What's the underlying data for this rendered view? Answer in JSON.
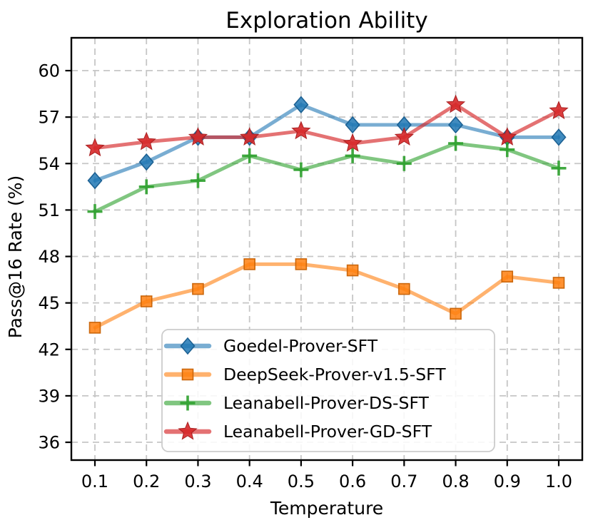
{
  "chart_data": {
    "type": "line",
    "title": "Exploration Ability",
    "xlabel": "Temperature",
    "ylabel": "Pass@16 Rate (%)",
    "x": [
      0.1,
      0.2,
      0.3,
      0.4,
      0.5,
      0.6,
      0.7,
      0.8,
      0.9,
      1.0
    ],
    "xtick_labels": [
      "0.1",
      "0.2",
      "0.3",
      "0.4",
      "0.5",
      "0.6",
      "0.7",
      "0.8",
      "0.9",
      "1.0"
    ],
    "yticks": [
      36,
      39,
      42,
      45,
      48,
      51,
      54,
      57,
      60
    ],
    "ytick_labels": [
      "36",
      "39",
      "42",
      "45",
      "48",
      "51",
      "54",
      "57",
      "60"
    ],
    "xlim": [
      0.0543,
      1.0457
    ],
    "ylim": [
      34.85,
      62.12
    ],
    "grid": true,
    "grid_style": "dashed",
    "grid_color": "#c6c6c6",
    "legend_position": "lower center",
    "series": [
      {
        "name": "Goedel-Prover-SFT",
        "marker": "diamond",
        "color": "#1f77b4",
        "line_color": "rgba(31,119,180,0.60)",
        "marker_fill": "rgba(31,119,180,0.85)",
        "marker_edge": "rgba(23,93,143,0.95)",
        "values": [
          52.9,
          54.1,
          55.7,
          55.7,
          57.8,
          56.5,
          56.5,
          56.5,
          55.7,
          55.7
        ]
      },
      {
        "name": "DeepSeek-Prover-v1.5-SFT",
        "marker": "square",
        "color": "#ff7f0e",
        "line_color": "rgba(255,127,14,0.60)",
        "marker_fill": "rgba(255,127,14,0.85)",
        "marker_edge": "rgba(200,98,5,0.95)",
        "values": [
          43.4,
          45.1,
          45.9,
          47.5,
          47.5,
          47.1,
          45.9,
          44.3,
          46.7,
          46.3
        ]
      },
      {
        "name": "Leanabell-Prover-DS-SFT",
        "marker": "plus",
        "color": "#2ca02c",
        "line_color": "rgba(44,160,44,0.60)",
        "marker_fill": "rgba(44,160,44,0.90)",
        "marker_edge": "rgba(33,125,33,0.95)",
        "values": [
          50.9,
          52.5,
          52.9,
          54.5,
          53.6,
          54.5,
          54.0,
          55.3,
          54.9,
          53.7
        ]
      },
      {
        "name": "Leanabell-Prover-GD-SFT",
        "marker": "star",
        "color": "#d62728",
        "line_color": "rgba(214,39,40,0.65)",
        "marker_fill": "rgba(214,39,40,0.90)",
        "marker_edge": "rgba(165,28,29,0.95)",
        "values": [
          55.0,
          55.4,
          55.7,
          55.7,
          56.1,
          55.3,
          55.7,
          57.8,
          55.7,
          57.4
        ]
      }
    ]
  }
}
